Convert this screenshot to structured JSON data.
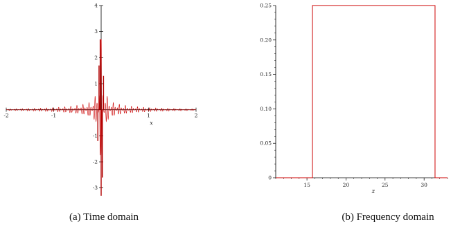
{
  "chart_data": [
    {
      "type": "line",
      "caption": "(a) Time domain",
      "xlabel": "x",
      "ylabel": "",
      "xlim": [
        -2,
        2
      ],
      "ylim": [
        -3.3,
        4
      ],
      "x_ticks": [
        -2,
        -1,
        1,
        2
      ],
      "y_ticks": [
        4,
        3,
        2,
        1,
        -1,
        -2,
        -3
      ],
      "line_color": "#cc0000",
      "series": [
        {
          "sampled": true,
          "x": [
            -2.0,
            -1.5,
            -1.0,
            -0.6,
            -0.4,
            -0.2,
            -0.1,
            -0.05,
            -0.02,
            0.0,
            0.02,
            0.05,
            0.1,
            0.2,
            0.4,
            0.6,
            1.0,
            1.5,
            2.0
          ],
          "envelope": [
            0.03,
            0.05,
            0.08,
            0.14,
            0.2,
            0.3,
            0.6,
            1.2,
            2.2,
            3.3,
            2.2,
            1.2,
            0.6,
            0.3,
            0.2,
            0.14,
            0.08,
            0.05,
            0.03
          ],
          "peak_max": 2.7,
          "peak_min": -3.3
        }
      ]
    },
    {
      "type": "line",
      "caption": "(b) Frequency domain",
      "xlabel": "z",
      "ylabel": "",
      "xlim": [
        11,
        33
      ],
      "ylim": [
        0,
        0.25
      ],
      "x_ticks": [
        15,
        20,
        25,
        30
      ],
      "y_ticks": [
        0,
        0.05,
        0.1,
        0.15,
        0.2,
        0.25
      ],
      "y_tick_labels": [
        "0",
        "0.05",
        "0.10",
        "0.15",
        "0.20",
        "0.25"
      ],
      "line_color": "#cc0000",
      "series": [
        {
          "x": [
            11,
            15.7,
            15.7,
            31.4,
            31.4,
            33
          ],
          "y": [
            0,
            0,
            0.25,
            0.25,
            0,
            0
          ]
        }
      ]
    }
  ]
}
